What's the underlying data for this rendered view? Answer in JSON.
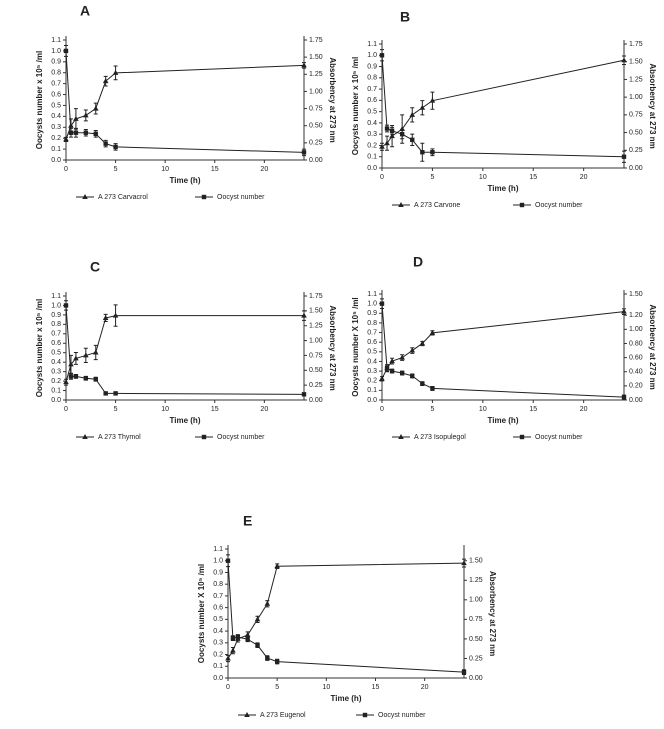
{
  "chart_data": [
    {
      "type": "line",
      "title": "A",
      "xlabel": "Time (h)",
      "ylabel": "Oocysts number x 10⁵ /ml",
      "y2label": "Absorbency at 273 nm",
      "x": [
        0,
        0.5,
        1,
        2,
        3,
        4,
        5,
        24
      ],
      "xlim": [
        0,
        24
      ],
      "xticks": [
        0,
        5,
        10,
        15,
        20
      ],
      "ylim": [
        0,
        1.1
      ],
      "yticks": [
        {
          "value": 0,
          "label": "0.0"
        },
        {
          "value": 0.1,
          "label": "0.1"
        },
        {
          "value": 0.2,
          "label": "0.2"
        },
        {
          "value": 0.3,
          "label": "0.3"
        },
        {
          "value": 0.4,
          "label": "0.4"
        },
        {
          "value": 0.5,
          "label": "0.5"
        },
        {
          "value": 0.6,
          "label": "0.6"
        },
        {
          "value": 0.7,
          "label": "0.7"
        },
        {
          "value": 0.8,
          "label": "0.8"
        },
        {
          "value": 0.9,
          "label": "0.9"
        },
        {
          "value": 1,
          "label": "1.0"
        },
        {
          "value": 1.1,
          "label": "1.1"
        }
      ],
      "y2lim": [
        0,
        1.75
      ],
      "y2ticks": [
        {
          "value": 0,
          "label": "0.00"
        },
        {
          "value": 0.25,
          "label": "0.25"
        },
        {
          "value": 0.5,
          "label": "0.50"
        },
        {
          "value": 0.75,
          "label": "0.75"
        },
        {
          "value": 1,
          "label": "1.00"
        },
        {
          "value": 1.25,
          "label": "1.25"
        },
        {
          "value": 1.5,
          "label": "1.50"
        },
        {
          "value": 1.75,
          "label": "1.75"
        }
      ],
      "series": [
        {
          "name": "A 273 Carvacrol",
          "color": "#222222",
          "axis": "y2",
          "marker": "triangle",
          "values": [
            0.3,
            0.5,
            0.6,
            0.65,
            0.75,
            1.15,
            1.27,
            1.38
          ],
          "errors": [
            0.03,
            0.1,
            0.15,
            0.08,
            0.08,
            0.07,
            0.1,
            0.04
          ]
        },
        {
          "name": "Oocyst number",
          "color": "#222222",
          "marker": "square",
          "values": [
            1.0,
            0.25,
            0.25,
            0.25,
            0.24,
            0.15,
            0.12,
            0.07
          ],
          "errors": [
            0.05,
            0.04,
            0.04,
            0.03,
            0.03,
            0.03,
            0.03,
            0.03
          ]
        }
      ]
    },
    {
      "type": "line",
      "title": "B",
      "xlabel": "Time (h)",
      "ylabel": "Oocysts number x 10⁵ /ml",
      "y2label": "Absorbency at 273 nm",
      "x": [
        0,
        0.5,
        1,
        2,
        3,
        4,
        5,
        24
      ],
      "xlim": [
        0,
        24
      ],
      "xticks": [
        0,
        5,
        10,
        15,
        20
      ],
      "ylim": [
        0,
        1.1
      ],
      "yticks": [
        {
          "value": 0,
          "label": "0.0"
        },
        {
          "value": 0.1,
          "label": "0.1"
        },
        {
          "value": 0.2,
          "label": "0.2"
        },
        {
          "value": 0.3,
          "label": "0.3"
        },
        {
          "value": 0.4,
          "label": "0.4"
        },
        {
          "value": 0.5,
          "label": "0.5"
        },
        {
          "value": 0.6,
          "label": "0.6"
        },
        {
          "value": 0.7,
          "label": "0.7"
        },
        {
          "value": 0.8,
          "label": "0.8"
        },
        {
          "value": 0.9,
          "label": "0.9"
        },
        {
          "value": 1,
          "label": "1.0"
        },
        {
          "value": 1.1,
          "label": "1.1"
        }
      ],
      "y2lim": [
        0,
        1.75
      ],
      "y2ticks": [
        {
          "value": 0,
          "label": "0.00"
        },
        {
          "value": 0.25,
          "label": "0.25"
        },
        {
          "value": 0.5,
          "label": "0.50"
        },
        {
          "value": 0.75,
          "label": "0.75"
        },
        {
          "value": 1,
          "label": "1.00"
        },
        {
          "value": 1.25,
          "label": "1.25"
        },
        {
          "value": 1.5,
          "label": "1.50"
        },
        {
          "value": 1.75,
          "label": "1.75"
        }
      ],
      "series": [
        {
          "name": "A 273 Carvone",
          "color": "#222222",
          "axis": "y2",
          "marker": "triangle",
          "values": [
            0.3,
            0.35,
            0.45,
            0.55,
            0.75,
            0.85,
            0.95,
            1.52
          ],
          "errors": [
            0.05,
            0.1,
            0.15,
            0.2,
            0.1,
            0.1,
            0.12,
            0.06
          ]
        },
        {
          "name": "Oocyst number",
          "color": "#222222",
          "marker": "square",
          "values": [
            1.0,
            0.35,
            0.33,
            0.3,
            0.25,
            0.14,
            0.14,
            0.1
          ],
          "errors": [
            0.05,
            0.03,
            0.03,
            0.04,
            0.05,
            0.08,
            0.03,
            0.05
          ]
        }
      ]
    },
    {
      "type": "line",
      "title": "C",
      "xlabel": "Time (h)",
      "ylabel": "Oocysts number x 10⁵ /ml",
      "y2label": "Absorbency at 273 nm",
      "x": [
        0,
        0.5,
        1,
        2,
        3,
        4,
        5,
        24
      ],
      "xlim": [
        0,
        24
      ],
      "xticks": [
        0,
        5,
        10,
        15,
        20
      ],
      "ylim": [
        0,
        1.1
      ],
      "yticks": [
        {
          "value": 0,
          "label": "0.0"
        },
        {
          "value": 0.1,
          "label": "0.1"
        },
        {
          "value": 0.2,
          "label": "0.2"
        },
        {
          "value": 0.3,
          "label": "0.3"
        },
        {
          "value": 0.4,
          "label": "0.4"
        },
        {
          "value": 0.5,
          "label": "0.5"
        },
        {
          "value": 0.6,
          "label": "0.6"
        },
        {
          "value": 0.7,
          "label": "0.7"
        },
        {
          "value": 0.8,
          "label": "0.8"
        },
        {
          "value": 0.9,
          "label": "0.9"
        },
        {
          "value": 1,
          "label": "1.0"
        },
        {
          "value": 1.1,
          "label": "1.1"
        }
      ],
      "y2lim": [
        0,
        1.75
      ],
      "y2ticks": [
        {
          "value": 0,
          "label": "0.00"
        },
        {
          "value": 0.25,
          "label": "0.25"
        },
        {
          "value": 0.5,
          "label": "0.50"
        },
        {
          "value": 0.75,
          "label": "0.75"
        },
        {
          "value": 1,
          "label": "1.00"
        },
        {
          "value": 1.25,
          "label": "1.25"
        },
        {
          "value": 1.5,
          "label": "1.50"
        },
        {
          "value": 1.75,
          "label": "1.75"
        }
      ],
      "series": [
        {
          "name": "A 273 Thymol",
          "color": "#222222",
          "axis": "y2",
          "marker": "triangle",
          "values": [
            0.3,
            0.6,
            0.7,
            0.75,
            0.8,
            1.38,
            1.42,
            1.42
          ],
          "errors": [
            0.05,
            0.15,
            0.1,
            0.12,
            0.12,
            0.06,
            0.18,
            0.08
          ]
        },
        {
          "name": "Oocyst number",
          "color": "#222222",
          "marker": "square",
          "values": [
            1.0,
            0.25,
            0.25,
            0.23,
            0.22,
            0.07,
            0.07,
            0.06
          ],
          "errors": [
            0.05,
            0.03,
            0.02,
            0.02,
            0.02,
            0.01,
            0.01,
            0.01
          ]
        }
      ]
    },
    {
      "type": "line",
      "title": "D",
      "xlabel": "Time (h)",
      "ylabel": "Oocysts number X 10⁵ /ml",
      "y2label": "Absorbency at 273 nm",
      "x": [
        0,
        0.5,
        1,
        2,
        3,
        4,
        5,
        24
      ],
      "xlim": [
        0,
        24
      ],
      "xticks": [
        0,
        5,
        10,
        15,
        20
      ],
      "ylim": [
        0,
        1.1
      ],
      "yticks": [
        {
          "value": 0,
          "label": "0.0"
        },
        {
          "value": 0.1,
          "label": "0.1"
        },
        {
          "value": 0.2,
          "label": "0.2"
        },
        {
          "value": 0.3,
          "label": "0.3"
        },
        {
          "value": 0.4,
          "label": "0.4"
        },
        {
          "value": 0.5,
          "label": "0.5"
        },
        {
          "value": 0.6,
          "label": "0.6"
        },
        {
          "value": 0.7,
          "label": "0.7"
        },
        {
          "value": 0.8,
          "label": "0.8"
        },
        {
          "value": 0.9,
          "label": "0.9"
        },
        {
          "value": 1,
          "label": "1.0"
        },
        {
          "value": 1.1,
          "label": "1.1"
        }
      ],
      "y2lim": [
        0,
        1.5
      ],
      "y2ticks": [
        {
          "value": 0,
          "label": "0.00"
        },
        {
          "value": 0.2,
          "label": "0.20"
        },
        {
          "value": 0.4,
          "label": "0.40"
        },
        {
          "value": 0.6,
          "label": "0.60"
        },
        {
          "value": 0.8,
          "label": "0.80"
        },
        {
          "value": 1,
          "label": "1.00"
        },
        {
          "value": 1.2,
          "label": "1.20"
        },
        {
          "value": 1.5,
          "label": "1.50"
        }
      ],
      "series": [
        {
          "name": "A 273 Isopulegol",
          "color": "#222222",
          "axis": "y2",
          "marker": "triangle",
          "values": [
            0.3,
            0.45,
            0.55,
            0.6,
            0.7,
            0.8,
            0.95,
            1.25
          ],
          "errors": [
            0.03,
            0.05,
            0.04,
            0.04,
            0.04,
            0.03,
            0.03,
            0.04
          ]
        },
        {
          "name": "Oocyst number",
          "color": "#222222",
          "marker": "square",
          "values": [
            1.0,
            0.33,
            0.3,
            0.28,
            0.25,
            0.17,
            0.12,
            0.03
          ],
          "errors": [
            0.05,
            0.03,
            0.02,
            0.02,
            0.02,
            0.02,
            0.02,
            0.02
          ]
        }
      ]
    },
    {
      "type": "line",
      "title": "E",
      "xlabel": "Time (h)",
      "ylabel": "Oocysts number X 10⁵ /ml",
      "y2label": "Absorbency at 273 nm",
      "x": [
        0,
        0.5,
        1,
        2,
        3,
        4,
        5,
        24
      ],
      "xlim": [
        0,
        24
      ],
      "xticks": [
        0,
        5,
        10,
        15,
        20
      ],
      "ylim": [
        0,
        1.1
      ],
      "yticks": [
        {
          "value": 0,
          "label": "0.0"
        },
        {
          "value": 0.1,
          "label": "0.1"
        },
        {
          "value": 0.2,
          "label": "0.2"
        },
        {
          "value": 0.3,
          "label": "0.3"
        },
        {
          "value": 0.4,
          "label": "0.4"
        },
        {
          "value": 0.5,
          "label": "0.5"
        },
        {
          "value": 0.6,
          "label": "0.6"
        },
        {
          "value": 0.7,
          "label": "0.7"
        },
        {
          "value": 0.8,
          "label": "0.8"
        },
        {
          "value": 0.9,
          "label": "0.9"
        },
        {
          "value": 1,
          "label": "1.0"
        },
        {
          "value": 1.1,
          "label": "1.1"
        }
      ],
      "y2lim": [
        0,
        1.65
      ],
      "y2ticks": [
        {
          "value": 0,
          "label": "0.00"
        },
        {
          "value": 0.25,
          "label": "0.25"
        },
        {
          "value": 0.5,
          "label": "0.50"
        },
        {
          "value": 0.75,
          "label": "0.75"
        },
        {
          "value": 1,
          "label": "1.00"
        },
        {
          "value": 1.25,
          "label": "1.25"
        },
        {
          "value": 1.5,
          "label": "1.50"
        }
      ],
      "series": [
        {
          "name": "A 273 Eugenol",
          "color": "#222222",
          "axis": "y2",
          "marker": "triangle",
          "values": [
            0.25,
            0.35,
            0.5,
            0.55,
            0.75,
            0.95,
            1.43,
            1.47
          ],
          "errors": [
            0.04,
            0.04,
            0.04,
            0.04,
            0.04,
            0.04,
            0.03,
            0.05
          ]
        },
        {
          "name": "Oocyst number",
          "color": "#222222",
          "marker": "square",
          "values": [
            1.0,
            0.34,
            0.35,
            0.33,
            0.28,
            0.17,
            0.14,
            0.05
          ],
          "errors": [
            0.05,
            0.02,
            0.02,
            0.02,
            0.02,
            0.02,
            0.02,
            0.02
          ]
        }
      ]
    }
  ]
}
